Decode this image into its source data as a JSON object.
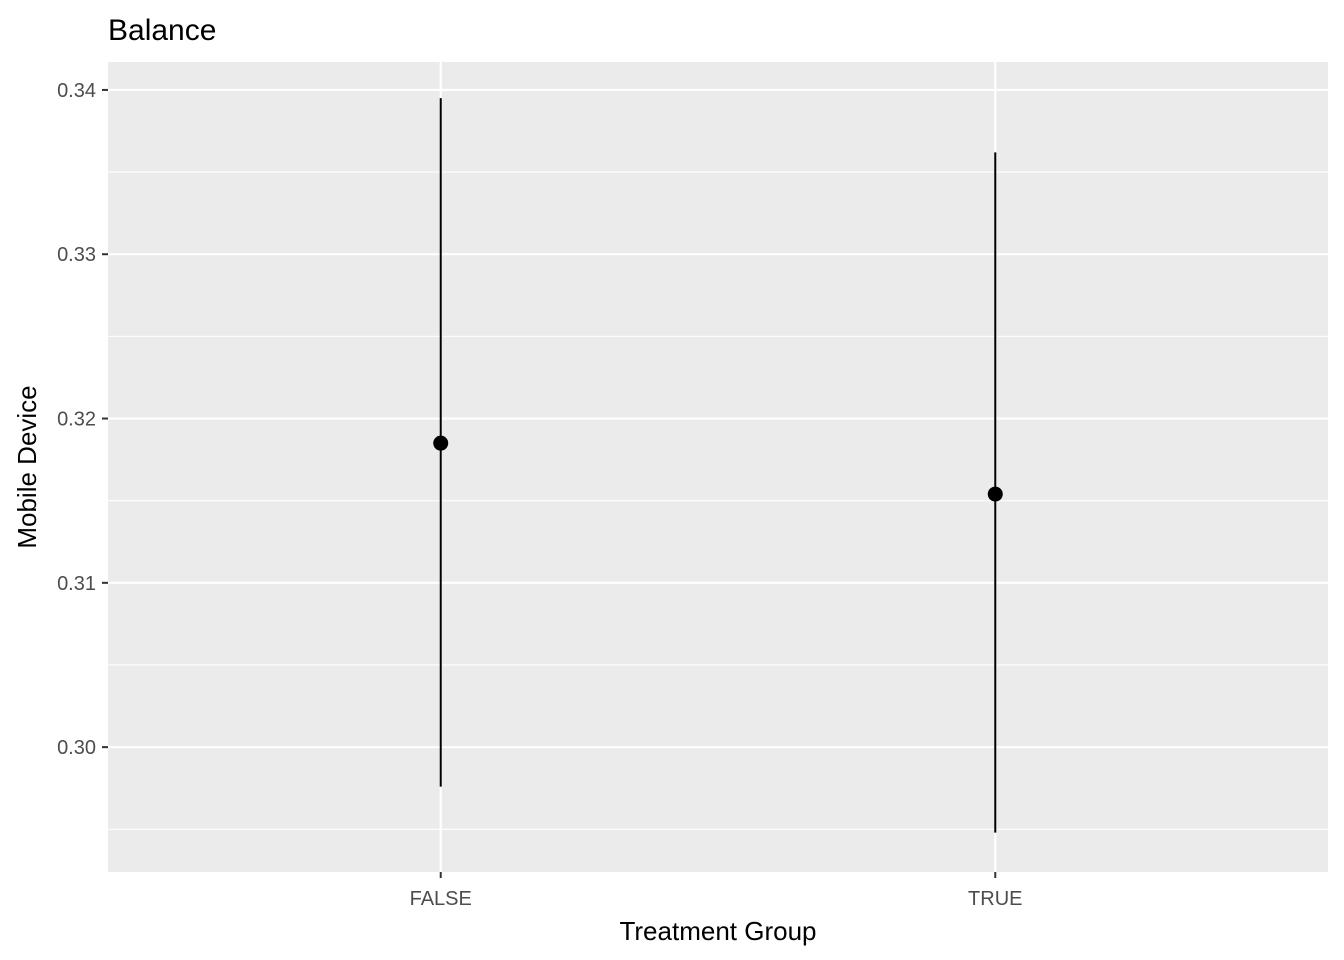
{
  "chart_data": {
    "type": "pointrange",
    "title": "Balance",
    "xlabel": "Treatment Group",
    "ylabel": "Mobile Device",
    "categories": [
      "FALSE",
      "TRUE"
    ],
    "points": [
      {
        "x": "FALSE",
        "y": 0.3185,
        "ymin": 0.2976,
        "ymax": 0.3395
      },
      {
        "x": "TRUE",
        "y": 0.3154,
        "ymin": 0.2948,
        "ymax": 0.3362
      }
    ],
    "yticks": [
      0.3,
      0.31,
      0.32,
      0.33,
      0.34
    ],
    "ytick_labels": [
      "0.30",
      "0.31",
      "0.32",
      "0.33",
      "0.34"
    ],
    "ylim": [
      0.2924,
      0.3417
    ],
    "grid": true,
    "theme": {
      "panel_bg": "#ebebeb",
      "grid_color": "#ffffff",
      "mark_color": "#000000"
    }
  }
}
